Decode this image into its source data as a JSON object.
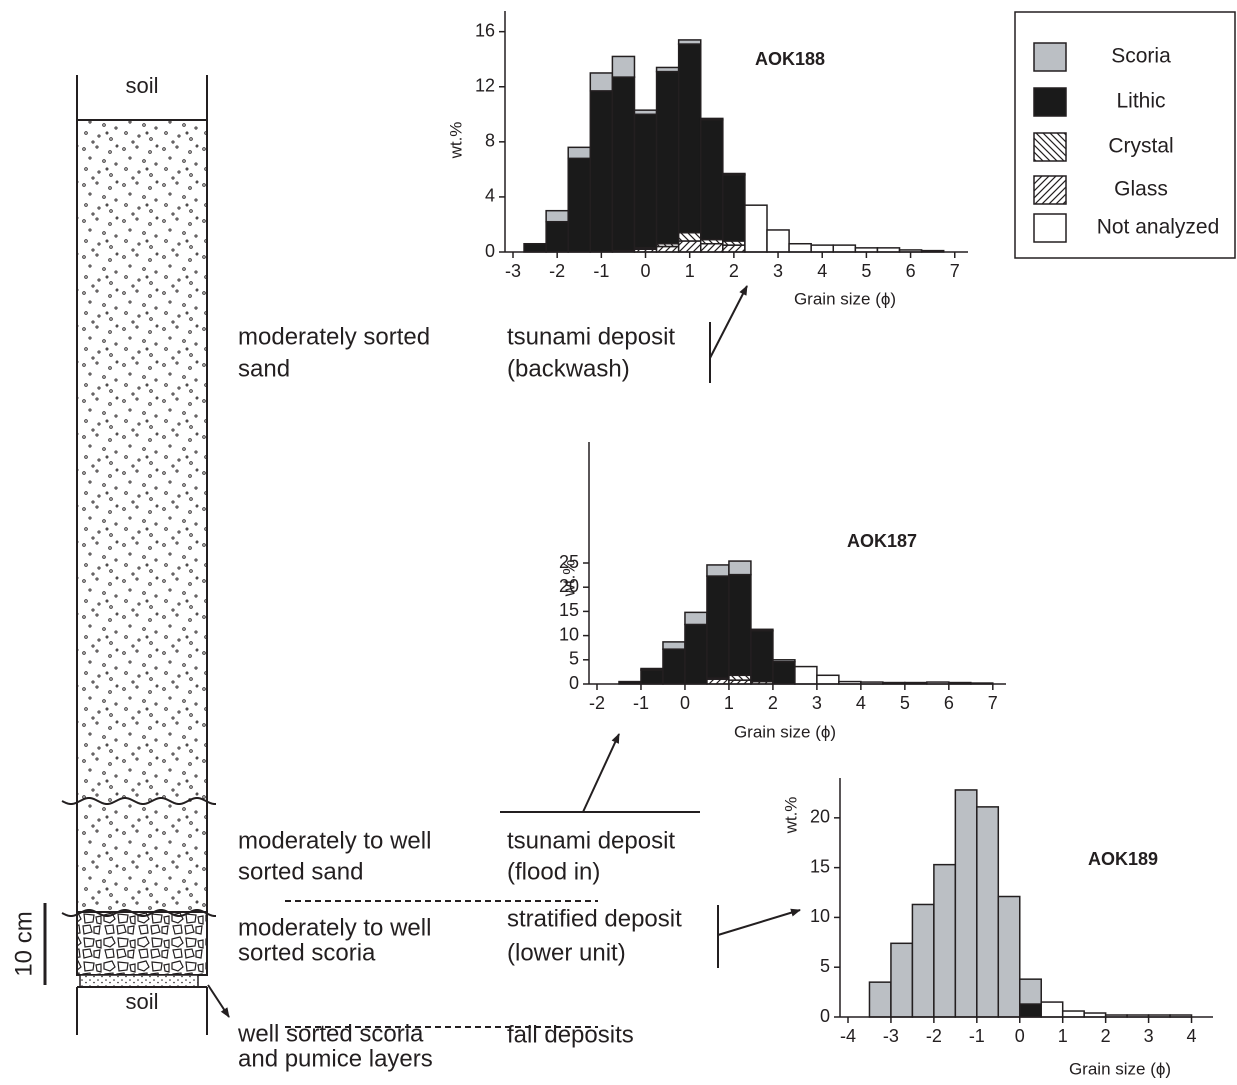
{
  "chart_data": [
    {
      "type": "histogram",
      "title": "AOK188",
      "xlabel": "Grain size (ϕ)",
      "ylabel": "wt.%",
      "bins": [
        -2.75,
        -2.25,
        -1.75,
        -1.25,
        -0.75,
        -0.25,
        0.25,
        0.75,
        1.25,
        1.75,
        2.25,
        2.75,
        3.25,
        3.75,
        4.25,
        4.75,
        5.25,
        5.75,
        6.25,
        6.75
      ],
      "series": [
        {
          "name": "Scoria",
          "color": "#bbbfc4",
          "values": [
            0,
            0.8,
            0.8,
            1.3,
            1.5,
            0.3,
            0.3,
            0.3,
            0.1,
            0.1,
            0,
            0,
            0,
            0,
            0,
            0,
            0,
            0,
            0
          ]
        },
        {
          "name": "Lithic",
          "color": "#1a1a1a",
          "values": [
            0.6,
            2.2,
            6.8,
            11.7,
            12.6,
            9.7,
            12.5,
            13.7,
            8.7,
            4.8,
            0,
            0,
            0,
            0,
            0,
            0,
            0,
            0,
            0
          ]
        },
        {
          "name": "Crystal",
          "color": "#ffffff",
          "hatch": "backslash",
          "values": [
            0,
            0,
            0,
            0,
            0,
            0.1,
            0.2,
            0.6,
            0.3,
            0.3,
            0,
            0,
            0,
            0,
            0,
            0,
            0,
            0,
            0
          ]
        },
        {
          "name": "Glass",
          "color": "#ffffff",
          "hatch": "slash",
          "values": [
            0,
            0,
            0,
            0,
            0.1,
            0.2,
            0.4,
            0.8,
            0.6,
            0.5,
            0,
            0,
            0,
            0,
            0,
            0,
            0,
            0,
            0
          ]
        },
        {
          "name": "Not analyzed",
          "color": "#ffffff",
          "values": [
            0,
            0,
            0,
            0,
            0,
            0,
            0,
            0,
            0,
            0,
            3.4,
            1.6,
            0.6,
            0.5,
            0.5,
            0.3,
            0.3,
            0.15,
            0.1
          ]
        }
      ],
      "xlim": [
        -3,
        7.3
      ],
      "xticks": [
        -3,
        -2,
        -1,
        0,
        1,
        2,
        3,
        4,
        5,
        6,
        7
      ],
      "ylim": [
        0,
        17.5
      ],
      "yticks": [
        0,
        4,
        8,
        12,
        16
      ]
    },
    {
      "type": "histogram",
      "title": "AOK187",
      "xlabel": "Grain size (ϕ)",
      "ylabel": "wt.%",
      "bins": [
        -1.5,
        -1,
        -0.5,
        0,
        0.5,
        1,
        1.5,
        2,
        2.5,
        3,
        3.5,
        4,
        4.5,
        5,
        5.5,
        6,
        6.5,
        7
      ],
      "series": [
        {
          "color": "#bbbfc4",
          "values": [
            0,
            0.3,
            1.5,
            2.5,
            2.3,
            2.8,
            0.3,
            0.4,
            0,
            0,
            0,
            0,
            0,
            0,
            0,
            0,
            0
          ]
        },
        {
          "color": "#1a1a1a",
          "values": [
            0.5,
            2.9,
            7.2,
            12.3,
            21.1,
            20.8,
            10.5,
            4.6,
            0,
            0,
            0,
            0,
            0,
            0,
            0,
            0,
            0
          ]
        },
        {
          "color": "#ffffff",
          "hatch": "backslash",
          "values": [
            0,
            0,
            0,
            0,
            0.2,
            1.0,
            0,
            0,
            0,
            0,
            0,
            0,
            0,
            0,
            0,
            0,
            0
          ]
        },
        {
          "color": "#ffffff",
          "hatch": "slash",
          "values": [
            0,
            0,
            0,
            0,
            1.0,
            0.8,
            0.5,
            0,
            0,
            0,
            0,
            0,
            0,
            0,
            0,
            0,
            0
          ]
        },
        {
          "color": "#ffffff",
          "values": [
            0,
            0,
            0,
            0,
            0,
            0,
            0,
            0,
            3.6,
            1.8,
            0.5,
            0.4,
            0.3,
            0.3,
            0.4,
            0.3,
            0.2
          ]
        }
      ],
      "xlim": [
        -2,
        7.3
      ],
      "xticks": [
        -2,
        -1,
        0,
        1,
        2,
        3,
        4,
        5,
        6,
        7
      ],
      "ylim": [
        0,
        50
      ],
      "yticks": [
        0,
        5,
        10,
        15,
        20,
        25
      ]
    },
    {
      "type": "histogram",
      "title": "AOK189",
      "xlabel": "Grain size (ϕ)",
      "ylabel": "wt.%",
      "bins": [
        -3.5,
        -3,
        -2.5,
        -2,
        -1.5,
        -1,
        -0.5,
        0,
        0.5,
        1,
        1.5,
        2,
        2.5,
        3,
        3.5,
        4
      ],
      "series": [
        {
          "color": "#bbbfc4",
          "values": [
            3.5,
            7.4,
            11.3,
            15.3,
            22.8,
            21.1,
            12.1,
            2.5,
            0,
            0,
            0,
            0,
            0,
            0,
            0
          ]
        },
        {
          "color": "#1a1a1a",
          "values": [
            0,
            0,
            0,
            0,
            0,
            0,
            0,
            1.3,
            0,
            0,
            0,
            0,
            0,
            0,
            0
          ]
        },
        {
          "color": "#ffffff",
          "hatch": "backslash",
          "values": [
            0,
            0,
            0,
            0,
            0,
            0,
            0,
            0,
            0,
            0,
            0,
            0,
            0,
            0,
            0
          ]
        },
        {
          "color": "#ffffff",
          "hatch": "slash",
          "values": [
            0,
            0,
            0,
            0,
            0,
            0,
            0,
            0,
            0,
            0,
            0,
            0,
            0,
            0,
            0
          ]
        },
        {
          "color": "#ffffff",
          "values": [
            0,
            0,
            0,
            0,
            0,
            0,
            0,
            0,
            1.5,
            0.6,
            0.4,
            0.2,
            0.2,
            0.2,
            0.2
          ]
        }
      ],
      "xlim": [
        -4,
        4.5
      ],
      "xticks": [
        -4,
        -3,
        -2,
        -1,
        0,
        1,
        2,
        3,
        4
      ],
      "ylim": [
        0,
        24
      ],
      "yticks": [
        0,
        5,
        10,
        15,
        20
      ]
    }
  ],
  "column": {
    "top_soil": "soil",
    "bottom_soil": "soil",
    "scale": "10 cm"
  },
  "units": [
    {
      "description": [
        "moderately sorted",
        "sand"
      ],
      "interpretation": [
        "tsunami deposit",
        "(backwash)"
      ]
    },
    {
      "description": [
        "moderately to well",
        "sorted sand"
      ],
      "interpretation": [
        "tsunami deposit",
        "(flood in)"
      ]
    },
    {
      "description": [
        "moderately to well",
        "sorted scoria"
      ],
      "interpretation": [
        "stratified deposit",
        "(lower unit)"
      ]
    },
    {
      "description": [
        "well sorted scoria",
        "and pumice layers"
      ],
      "interpretation": [
        "fall deposits"
      ]
    }
  ]
}
